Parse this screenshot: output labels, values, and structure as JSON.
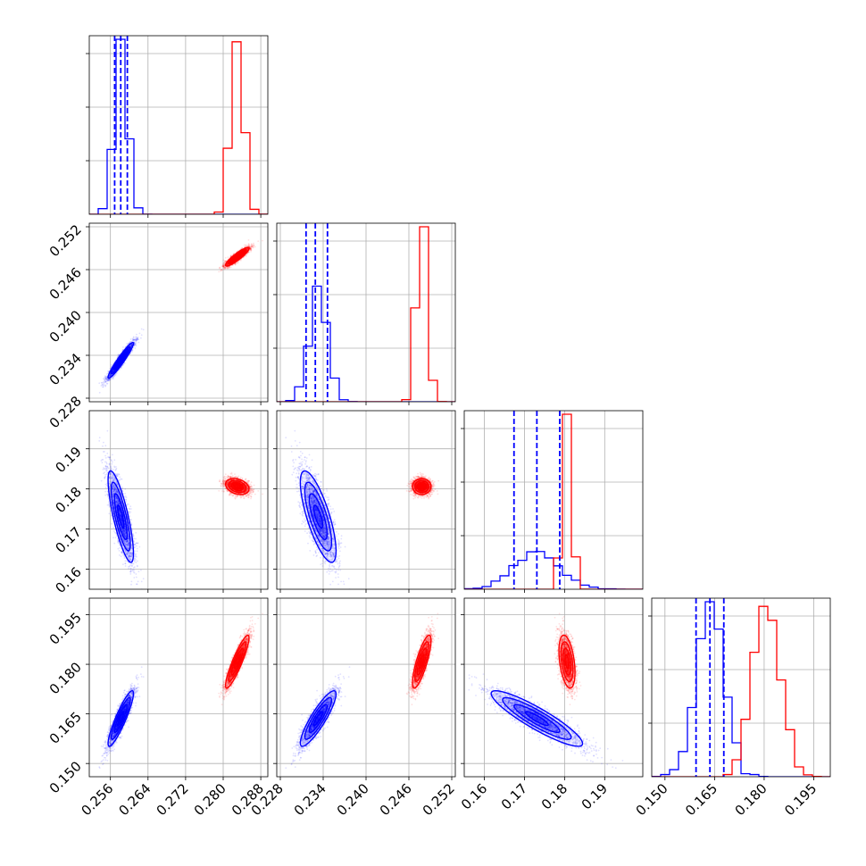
{
  "chart_data": {
    "type": "corner",
    "grid": true,
    "colors": {
      "blue": "#0000ff",
      "red": "#ff0000"
    },
    "parameters": [
      {
        "range": [
          0.2515,
          0.2895
        ],
        "ticks": [
          "0.256",
          "0.264",
          "0.272",
          "0.280",
          "0.288"
        ],
        "tick_values": [
          0.256,
          0.264,
          0.272,
          0.28,
          0.288
        ]
      },
      {
        "range": [
          0.2275,
          0.2525
        ],
        "ticks": [
          "0.228",
          "0.234",
          "0.240",
          "0.246",
          "0.252"
        ],
        "tick_values": [
          0.228,
          0.234,
          0.24,
          0.246,
          0.252
        ]
      },
      {
        "range": [
          0.155,
          0.1995
        ],
        "ticks": [
          "0.16",
          "0.17",
          "0.18",
          "0.19"
        ],
        "tick_values": [
          0.16,
          0.17,
          0.18,
          0.19
        ]
      },
      {
        "range": [
          0.146,
          0.2
        ],
        "ticks": [
          "0.150",
          "0.165",
          "0.180",
          "0.195"
        ],
        "tick_values": [
          0.15,
          0.165,
          0.18,
          0.195
        ]
      }
    ],
    "distributions": [
      {
        "name": "",
        "color": "#0000ff",
        "mean": [
          0.2582,
          0.2333,
          0.1731,
          0.1636
        ],
        "sd": [
          0.00135,
          0.00125,
          0.0057,
          0.0042
        ],
        "corr": [
          [
            1.0,
            0.95,
            -0.8,
            0.9
          ],
          [
            0.95,
            1.0,
            -0.75,
            0.88
          ],
          [
            -0.8,
            -0.75,
            1.0,
            -0.9
          ],
          [
            0.9,
            0.88,
            -0.9,
            1.0
          ]
        ],
        "quantiles": [
          [
            0.2569,
            0.2582,
            0.2596
          ],
          [
            0.2316,
            0.2329,
            0.2346
          ],
          [
            0.1674,
            0.1731,
            0.1788
          ],
          [
            0.1594,
            0.1636,
            0.1678
          ]
        ]
      },
      {
        "name": "",
        "color": "#ff0000",
        "mean": [
          0.283,
          0.2478,
          0.1806,
          0.1808
        ],
        "sd": [
          0.00125,
          0.00065,
          0.001,
          0.004
        ],
        "corr": [
          [
            1.0,
            0.9,
            -0.3,
            0.9
          ],
          [
            0.9,
            1.0,
            0.0,
            0.8
          ],
          [
            -0.3,
            0.0,
            1.0,
            -0.4
          ],
          [
            0.9,
            0.8,
            -0.4,
            1.0
          ]
        ]
      }
    ]
  }
}
